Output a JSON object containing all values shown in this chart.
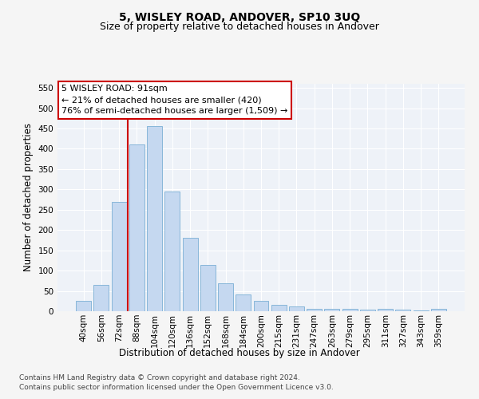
{
  "title": "5, WISLEY ROAD, ANDOVER, SP10 3UQ",
  "subtitle": "Size of property relative to detached houses in Andover",
  "xlabel": "Distribution of detached houses by size in Andover",
  "ylabel": "Number of detached properties",
  "categories": [
    "40sqm",
    "56sqm",
    "72sqm",
    "88sqm",
    "104sqm",
    "120sqm",
    "136sqm",
    "152sqm",
    "168sqm",
    "184sqm",
    "200sqm",
    "215sqm",
    "231sqm",
    "247sqm",
    "263sqm",
    "279sqm",
    "295sqm",
    "311sqm",
    "327sqm",
    "343sqm",
    "359sqm"
  ],
  "values": [
    25,
    65,
    270,
    410,
    455,
    295,
    180,
    113,
    68,
    42,
    25,
    15,
    11,
    6,
    5,
    5,
    3,
    5,
    4,
    2,
    5
  ],
  "bar_color": "#c5d8f0",
  "bar_edge_color": "#7aafd4",
  "vline_x_index": 2.5,
  "marker_label": "5 WISLEY ROAD: 91sqm",
  "annotation_line1": "← 21% of detached houses are smaller (420)",
  "annotation_line2": "76% of semi-detached houses are larger (1,509) →",
  "annotation_box_facecolor": "#ffffff",
  "annotation_box_edgecolor": "#cc0000",
  "vline_color": "#cc0000",
  "ylim": [
    0,
    560
  ],
  "yticks": [
    0,
    50,
    100,
    150,
    200,
    250,
    300,
    350,
    400,
    450,
    500,
    550
  ],
  "plot_bg_color": "#eef2f8",
  "grid_color": "#ffffff",
  "fig_bg_color": "#f5f5f5",
  "footer_line1": "Contains HM Land Registry data © Crown copyright and database right 2024.",
  "footer_line2": "Contains public sector information licensed under the Open Government Licence v3.0.",
  "title_fontsize": 10,
  "subtitle_fontsize": 9,
  "axis_label_fontsize": 8.5,
  "tick_fontsize": 7.5,
  "annotation_fontsize": 8,
  "footer_fontsize": 6.5
}
